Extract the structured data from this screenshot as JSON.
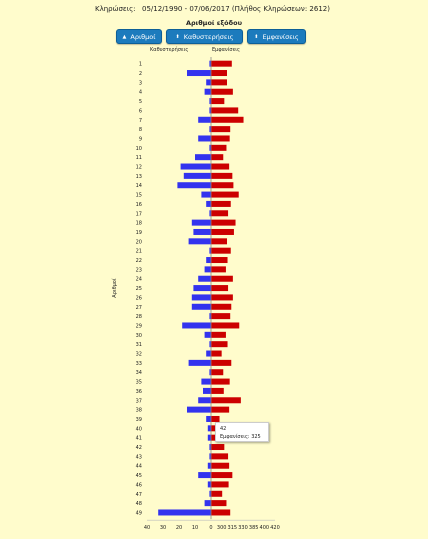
{
  "header": {
    "label": "Κληρώσεις:",
    "dates": "05/12/1990 - 07/06/2017  (Πλήθος Κληρώσεων: 2612)"
  },
  "subtitle": "Αριθμοί εξόδου",
  "buttons": [
    {
      "label": "Αριθμοί",
      "icon": "sort-up-icon",
      "glyph": "▲"
    },
    {
      "label": "Καθυστερήσεις",
      "icon": "sort-icon",
      "glyph": "⬍"
    },
    {
      "label": "Εμφανίσεις",
      "icon": "sort-icon",
      "glyph": "⬍"
    }
  ],
  "column_headers": {
    "left": "Καθυστερήσεις",
    "right": "Εμφανίσεις"
  },
  "tooltip": {
    "number": "42",
    "text": "Εμφανίσεις: 325"
  },
  "colors": {
    "delay": "#3333ee",
    "appearance": "#cc0000",
    "background": "#fffccc",
    "button": "#1c7bbd"
  },
  "chart_data": {
    "type": "bar",
    "ylabel": "Αριθμοί",
    "categories": [
      "1",
      "2",
      "3",
      "4",
      "5",
      "6",
      "7",
      "8",
      "9",
      "10",
      "11",
      "12",
      "13",
      "14",
      "15",
      "16",
      "17",
      "18",
      "19",
      "20",
      "21",
      "22",
      "23",
      "24",
      "25",
      "26",
      "27",
      "28",
      "29",
      "30",
      "31",
      "32",
      "33",
      "34",
      "35",
      "36",
      "37",
      "38",
      "39",
      "40",
      "41",
      "42",
      "43",
      "44",
      "45",
      "46",
      "47",
      "48",
      "49"
    ],
    "series": [
      {
        "name": "Καθυστερήσεις",
        "xlim": [
          0,
          40
        ],
        "values": [
          1,
          15,
          3,
          4,
          1,
          1,
          8,
          1,
          8,
          1,
          10,
          19,
          17,
          21,
          6,
          3,
          1,
          12,
          11,
          14,
          1,
          3,
          4,
          8,
          11,
          12,
          12,
          1,
          18,
          4,
          1,
          3,
          14,
          1,
          6,
          5,
          8,
          15,
          3,
          2,
          2,
          1,
          1,
          2,
          8,
          2,
          1,
          4,
          33
        ]
      },
      {
        "name": "Εμφανίσεις",
        "xlim": [
          300,
          420
        ],
        "values": [
          339,
          330,
          330,
          341,
          325,
          351,
          361,
          336,
          335,
          329,
          323,
          334,
          340,
          342,
          352,
          337,
          332,
          346,
          343,
          330,
          337,
          331,
          328,
          341,
          332,
          341,
          338,
          336,
          353,
          328,
          331,
          320,
          338,
          323,
          335,
          324,
          356,
          334,
          316,
          315,
          314,
          325,
          332,
          334,
          340,
          333,
          321,
          329,
          336
        ]
      }
    ],
    "x_ticks": [
      "40",
      "30",
      "20",
      "10",
      "0",
      "300",
      "315",
      "330",
      "385",
      "400",
      "420"
    ],
    "grid": false
  }
}
